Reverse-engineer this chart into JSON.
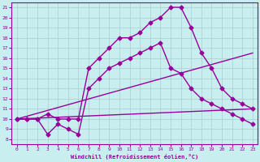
{
  "xlabel": "Windchill (Refroidissement éolien,°C)",
  "xlim": [
    0,
    23
  ],
  "ylim": [
    8,
    21
  ],
  "xticks": [
    0,
    1,
    2,
    3,
    4,
    5,
    6,
    7,
    8,
    9,
    10,
    11,
    12,
    13,
    14,
    15,
    16,
    17,
    18,
    19,
    20,
    21,
    22,
    23
  ],
  "yticks": [
    8,
    9,
    10,
    11,
    12,
    13,
    14,
    15,
    16,
    17,
    18,
    19,
    20,
    21
  ],
  "background_color": "#c8eef0",
  "line_color": "#990099",
  "grid_color": "#aacccc",
  "lines": [
    {
      "x": [
        0,
        1,
        2,
        3,
        4,
        5,
        6,
        7,
        8,
        9,
        10,
        11,
        12,
        13,
        14,
        15,
        16,
        17,
        18,
        19,
        20,
        21,
        22,
        23
      ],
      "y": [
        10,
        10,
        10,
        10.5,
        10,
        10,
        10,
        15,
        16,
        17,
        18,
        18,
        18.5,
        19.5,
        20,
        21,
        21,
        19,
        16.5,
        15,
        13,
        12,
        11.5,
        11
      ],
      "marker": "D",
      "markersize": 2.5,
      "linewidth": 1.0
    },
    {
      "x": [
        0,
        1,
        2,
        3,
        4,
        5,
        6,
        7,
        8,
        9,
        10,
        11,
        12,
        13,
        14,
        15,
        16,
        17,
        18,
        19,
        20,
        21,
        22,
        23
      ],
      "y": [
        10,
        10,
        10,
        8.5,
        9.5,
        9,
        8.5,
        13,
        14,
        15,
        15.5,
        16,
        16.5,
        17,
        17.5,
        15,
        14.5,
        13,
        12,
        11.5,
        11,
        10.5,
        10,
        9.5
      ],
      "marker": "D",
      "markersize": 2.5,
      "linewidth": 1.0
    },
    {
      "x": [
        0,
        23
      ],
      "y": [
        10,
        16.5
      ],
      "marker": null,
      "markersize": 0,
      "linewidth": 1.0
    },
    {
      "x": [
        0,
        23
      ],
      "y": [
        10,
        11
      ],
      "marker": null,
      "markersize": 0,
      "linewidth": 1.0
    }
  ]
}
